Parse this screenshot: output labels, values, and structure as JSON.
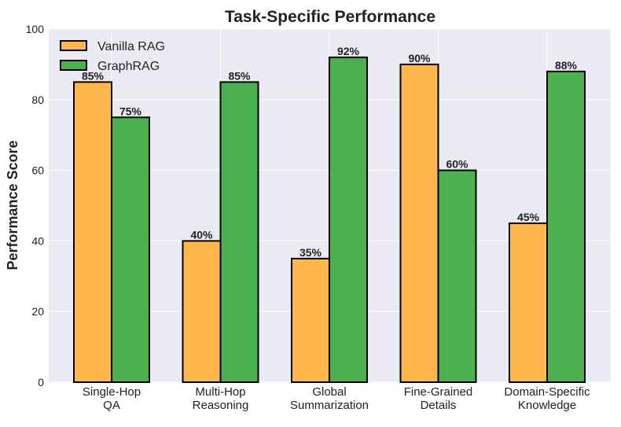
{
  "chart_data": {
    "type": "bar",
    "title": "Task-Specific Performance",
    "xlabel": "",
    "ylabel": "Performance Score",
    "ylim": [
      0,
      100
    ],
    "yticks": [
      0,
      20,
      40,
      60,
      80,
      100
    ],
    "grid": true,
    "legend_position": "top-left",
    "categories": [
      [
        "Single-Hop",
        "QA"
      ],
      [
        "Multi-Hop",
        "Reasoning"
      ],
      [
        "Global",
        "Summarization"
      ],
      [
        "Fine-Grained",
        "Details"
      ],
      [
        "Domain-Specific",
        "Knowledge"
      ]
    ],
    "series": [
      {
        "name": "Vanilla RAG",
        "color": "#FFB74D",
        "values": [
          85,
          40,
          35,
          90,
          45
        ]
      },
      {
        "name": "GraphRAG",
        "color": "#4CAF50",
        "values": [
          75,
          85,
          92,
          60,
          88
        ]
      }
    ]
  }
}
